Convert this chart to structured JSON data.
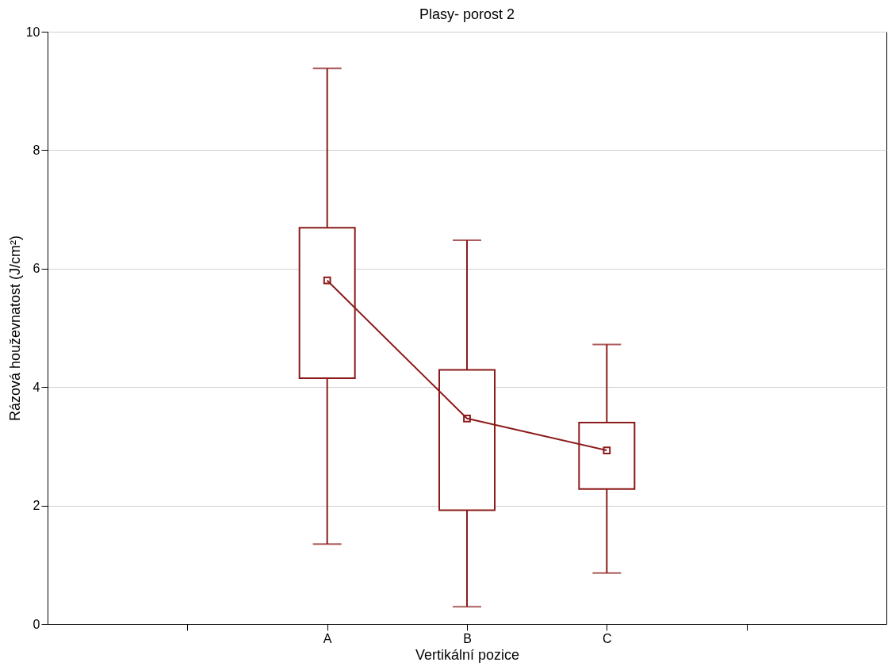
{
  "chart_data": {
    "type": "box",
    "title": "Plasy- porost 2",
    "xlabel": "Vertikální pozice",
    "ylabel": "Rázová houževnatost (J/cm²)",
    "categories": [
      null,
      "A",
      "B",
      "C",
      null
    ],
    "series": [
      {
        "color": "#8b1a1a",
        "boxes": [
          null,
          {
            "low": 1.35,
            "q1": 4.15,
            "median": 5.8,
            "q3": 6.69,
            "high": 9.38
          },
          {
            "low": 0.29,
            "q1": 1.92,
            "median": 3.47,
            "q3": 4.29,
            "high": 6.48
          },
          {
            "low": 0.86,
            "q1": 2.28,
            "median": 2.93,
            "q3": 3.4,
            "high": 4.72
          },
          null
        ]
      },
      {
        "type": "line",
        "color": "#8b1a1a",
        "marker": "none",
        "values": [
          null,
          5.8,
          3.47,
          2.93,
          null
        ]
      }
    ],
    "ylim": [
      0,
      10
    ],
    "yticks": [
      0,
      2,
      4,
      6,
      8,
      10
    ],
    "grid": "y",
    "marker": "square",
    "line_style": "solid"
  }
}
